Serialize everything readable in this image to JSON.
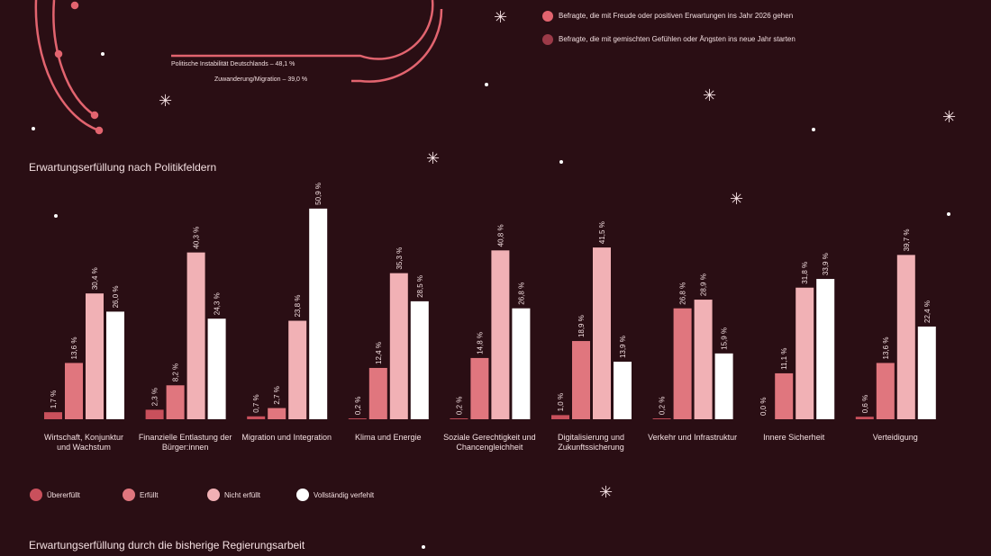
{
  "top_legend": {
    "items": [
      {
        "label": "Befragte, die mit Freude oder positiven Erwartungen ins Jahr 2026 gehen",
        "color": "#e2646f"
      },
      {
        "label": "Befragte, die mit gemischten Gefühlen oder Ängsten ins neue Jahr starten",
        "color": "#9c3a48"
      }
    ]
  },
  "arc_labels": [
    "Politische Instabilität Deutschlands – 48,1 %",
    "Zuwanderung/Migration – 39,0 %"
  ],
  "chart_data": {
    "type": "bar",
    "title": "Erwartungserfüllung nach Politikfeldern",
    "categories": [
      "Wirtschaft, Konjunktur und Wachstum",
      "Finanzielle Entlastung der Bürger:innen",
      "Migration und Integration",
      "Klima und Energie",
      "Soziale Gerechtigkeit und Chancengleichheit",
      "Digitalisierung und Zukunftssicherung",
      "Verkehr und Infrastruktur",
      "Innere Sicherheit",
      "Verteidigung"
    ],
    "series": [
      {
        "name": "Übererfüllt",
        "color": "#c9505c",
        "values": [
          1.7,
          2.3,
          0.7,
          0.2,
          0.2,
          1.0,
          0.2,
          0.0,
          0.6
        ],
        "value_labels": [
          "1,7 %",
          "2,3 %",
          "0,7 %",
          "0,2 %",
          "0,2 %",
          "1,0 %",
          "0,2 %",
          "0,0 %",
          "0,6 %"
        ]
      },
      {
        "name": "Erfüllt",
        "color": "#e0767e",
        "values": [
          13.6,
          8.2,
          2.7,
          12.4,
          14.8,
          18.9,
          26.8,
          11.1,
          13.6
        ],
        "value_labels": [
          "13,6 %",
          "8,2 %",
          "2,7 %",
          "12,4 %",
          "14,8 %",
          "18,9 %",
          "26,8 %",
          "11,1 %",
          "13,6 %"
        ]
      },
      {
        "name": "Nicht erfüllt",
        "color": "#f1b1b5",
        "values": [
          30.4,
          40.3,
          23.8,
          35.3,
          40.8,
          41.5,
          28.9,
          31.8,
          39.7
        ],
        "value_labels": [
          "30,4 %",
          "40,3 %",
          "23,8 %",
          "35,3 %",
          "40,8 %",
          "41,5 %",
          "28,9 %",
          "31,8 %",
          "39,7 %"
        ]
      },
      {
        "name": "Vollständig verfehlt",
        "color": "#ffffff",
        "values": [
          26.0,
          24.3,
          50.9,
          28.5,
          26.8,
          13.9,
          15.9,
          33.9,
          22.4
        ],
        "value_labels": [
          "26,0 %",
          "24,3 %",
          "50,9 %",
          "28,5 %",
          "26,8 %",
          "13,9 %",
          "15,9 %",
          "33,9 %",
          "22,4 %"
        ]
      }
    ]
  },
  "next_section": {
    "title": "Erwartungserfüllung durch die bisherige Regierungsarbeit"
  }
}
